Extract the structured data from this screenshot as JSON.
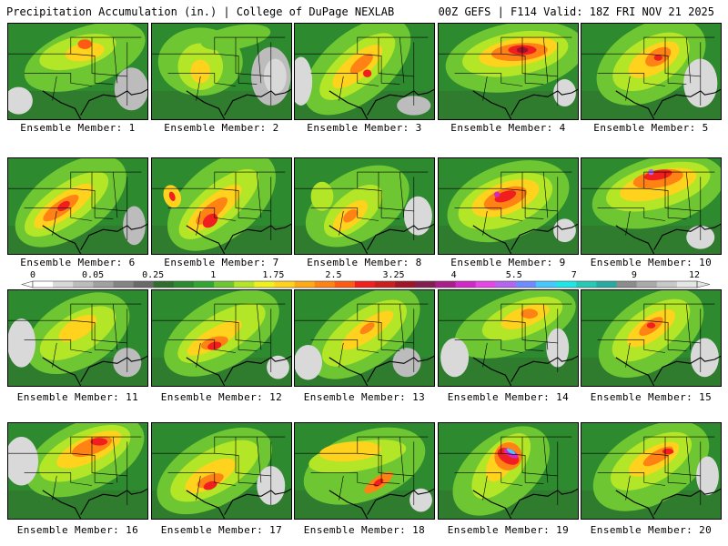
{
  "header": {
    "left": "Precipitation Accumulation (in.) | College of DuPage NEXLAB",
    "right": "00Z GEFS | F114 Valid: 18Z FRI NOV 21 2025"
  },
  "colorbar": {
    "labels": [
      "0",
      "0.05",
      "0.25",
      "1",
      "1.75",
      "2.5",
      "3.25",
      "4",
      "5.5",
      "7",
      "9",
      "12"
    ],
    "colors": [
      "#ffffff",
      "#d9d9d9",
      "#bcbcbc",
      "#a0a0a0",
      "#848484",
      "#6a6a6a",
      "#2f6e2f",
      "#2e8a2e",
      "#32a532",
      "#6ec632",
      "#b4e628",
      "#f0f01e",
      "#ffd21e",
      "#ffaa14",
      "#ff8214",
      "#ff5a14",
      "#f01e1e",
      "#c81e1e",
      "#a01428",
      "#821e50",
      "#aa1e8c",
      "#d228c8",
      "#e646e6",
      "#b464f0",
      "#6e8cff",
      "#46c8ff",
      "#1ee6e6",
      "#28c8b4",
      "#28aaa0",
      "#8c8c8c",
      "#aaaaaa",
      "#c8c8c8",
      "#e6e6e6"
    ]
  },
  "captions": [
    "Ensemble Member: 1",
    "Ensemble Member: 2",
    "Ensemble Member: 3",
    "Ensemble Member: 4",
    "Ensemble Member: 5",
    "Ensemble Member: 6",
    "Ensemble Member: 7",
    "Ensemble Member: 8",
    "Ensemble Member: 9",
    "Ensemble Member: 10",
    "Ensemble Member: 11",
    "Ensemble Member: 12",
    "Ensemble Member: 13",
    "Ensemble Member: 14",
    "Ensemble Member: 15",
    "Ensemble Member: 16",
    "Ensemble Member: 17",
    "Ensemble Member: 18",
    "Ensemble Member: 19",
    "Ensemble Member: 20"
  ],
  "members": [
    {
      "bg": "#2e8a2e",
      "blobs": [
        [
          "#6ec632",
          0.55,
          0.35,
          0.45,
          0.3,
          -20
        ],
        [
          "#b4e628",
          0.5,
          0.3,
          0.28,
          0.16,
          -15
        ],
        [
          "#ffd21e",
          0.55,
          0.3,
          0.14,
          0.09,
          -10
        ],
        [
          "#ff5a14",
          0.55,
          0.22,
          0.05,
          0.05,
          0
        ],
        [
          "#bcbcbc",
          0.88,
          0.68,
          0.12,
          0.22,
          0
        ],
        [
          "#d9d9d9",
          0.08,
          0.8,
          0.1,
          0.14,
          0
        ]
      ]
    },
    {
      "bg": "#2e8a2e",
      "blobs": [
        [
          "#6ec632",
          0.35,
          0.4,
          0.3,
          0.35,
          0
        ],
        [
          "#b4e628",
          0.35,
          0.45,
          0.16,
          0.24,
          0
        ],
        [
          "#ffd21e",
          0.35,
          0.5,
          0.07,
          0.12,
          0
        ],
        [
          "#bcbcbc",
          0.85,
          0.55,
          0.14,
          0.3,
          0
        ],
        [
          "#d9d9d9",
          0.88,
          0.55,
          0.08,
          0.18,
          0
        ],
        [
          "#6ec632",
          0.6,
          0.15,
          0.25,
          0.12,
          -10
        ]
      ]
    },
    {
      "bg": "#2e8a2e",
      "blobs": [
        [
          "#6ec632",
          0.45,
          0.45,
          0.45,
          0.35,
          -40
        ],
        [
          "#b4e628",
          0.45,
          0.45,
          0.33,
          0.2,
          -40
        ],
        [
          "#ffd21e",
          0.45,
          0.45,
          0.22,
          0.12,
          -40
        ],
        [
          "#ff8214",
          0.48,
          0.42,
          0.1,
          0.06,
          -40
        ],
        [
          "#f01e1e",
          0.52,
          0.52,
          0.03,
          0.04,
          0
        ],
        [
          "#d9d9d9",
          0.05,
          0.6,
          0.08,
          0.25,
          0
        ],
        [
          "#bcbcbc",
          0.85,
          0.85,
          0.12,
          0.1,
          0
        ]
      ]
    },
    {
      "bg": "#2e8a2e",
      "blobs": [
        [
          "#6ec632",
          0.55,
          0.35,
          0.5,
          0.35,
          -10
        ],
        [
          "#b4e628",
          0.55,
          0.32,
          0.38,
          0.22,
          -10
        ],
        [
          "#ffd21e",
          0.57,
          0.3,
          0.28,
          0.14,
          -10
        ],
        [
          "#ff8214",
          0.58,
          0.3,
          0.2,
          0.09,
          -5
        ],
        [
          "#f01e1e",
          0.6,
          0.28,
          0.1,
          0.05,
          0
        ],
        [
          "#a01428",
          0.6,
          0.28,
          0.04,
          0.03,
          0
        ],
        [
          "#d9d9d9",
          0.9,
          0.72,
          0.08,
          0.14,
          0
        ]
      ]
    },
    {
      "bg": "#2e8a2e",
      "blobs": [
        [
          "#6ec632",
          0.5,
          0.4,
          0.42,
          0.38,
          -30
        ],
        [
          "#b4e628",
          0.5,
          0.4,
          0.3,
          0.24,
          -30
        ],
        [
          "#ffd21e",
          0.52,
          0.38,
          0.2,
          0.14,
          -30
        ],
        [
          "#ff8214",
          0.55,
          0.35,
          0.1,
          0.08,
          -30
        ],
        [
          "#f01e1e",
          0.55,
          0.36,
          0.03,
          0.03,
          0
        ],
        [
          "#d9d9d9",
          0.85,
          0.62,
          0.12,
          0.25,
          0
        ]
      ]
    },
    {
      "bg": "#2e8a2e",
      "blobs": [
        [
          "#6ec632",
          0.45,
          0.45,
          0.45,
          0.35,
          -35
        ],
        [
          "#b4e628",
          0.42,
          0.48,
          0.35,
          0.2,
          -35
        ],
        [
          "#ffd21e",
          0.4,
          0.5,
          0.25,
          0.12,
          -35
        ],
        [
          "#ff8214",
          0.38,
          0.52,
          0.15,
          0.07,
          -35
        ],
        [
          "#f01e1e",
          0.4,
          0.5,
          0.05,
          0.04,
          -35
        ],
        [
          "#bcbcbc",
          0.9,
          0.7,
          0.08,
          0.2,
          0
        ]
      ]
    },
    {
      "bg": "#2e8a2e",
      "blobs": [
        [
          "#6ec632",
          0.5,
          0.45,
          0.45,
          0.38,
          -40
        ],
        [
          "#b4e628",
          0.48,
          0.48,
          0.35,
          0.2,
          -40
        ],
        [
          "#ffd21e",
          0.45,
          0.52,
          0.24,
          0.12,
          -40
        ],
        [
          "#ff8214",
          0.43,
          0.55,
          0.14,
          0.07,
          -40
        ],
        [
          "#f01e1e",
          0.42,
          0.65,
          0.06,
          0.06,
          -40
        ],
        [
          "#ffd21e",
          0.15,
          0.4,
          0.06,
          0.12,
          -20
        ],
        [
          "#f01e1e",
          0.15,
          0.4,
          0.02,
          0.05,
          -20
        ]
      ]
    },
    {
      "bg": "#2e8a2e",
      "blobs": [
        [
          "#6ec632",
          0.45,
          0.5,
          0.4,
          0.35,
          -30
        ],
        [
          "#b4e628",
          0.42,
          0.55,
          0.25,
          0.18,
          -40
        ],
        [
          "#ffd21e",
          0.4,
          0.6,
          0.15,
          0.1,
          -40
        ],
        [
          "#ff8214",
          0.4,
          0.6,
          0.06,
          0.05,
          -40
        ],
        [
          "#b4e628",
          0.2,
          0.4,
          0.08,
          0.15,
          0
        ],
        [
          "#d9d9d9",
          0.88,
          0.6,
          0.1,
          0.2,
          0
        ]
      ]
    },
    {
      "bg": "#2e8a2e",
      "blobs": [
        [
          "#6ec632",
          0.5,
          0.45,
          0.45,
          0.38,
          -20
        ],
        [
          "#b4e628",
          0.48,
          0.45,
          0.35,
          0.25,
          -20
        ],
        [
          "#ffd21e",
          0.48,
          0.42,
          0.25,
          0.16,
          -20
        ],
        [
          "#ff8214",
          0.48,
          0.42,
          0.16,
          0.1,
          -20
        ],
        [
          "#f01e1e",
          0.48,
          0.4,
          0.08,
          0.05,
          -20
        ],
        [
          "#d228c8",
          0.42,
          0.38,
          0.02,
          0.03,
          0
        ],
        [
          "#d9d9d9",
          0.9,
          0.75,
          0.08,
          0.12,
          0
        ]
      ]
    },
    {
      "bg": "#2e8a2e",
      "blobs": [
        [
          "#6ec632",
          0.55,
          0.35,
          0.48,
          0.35,
          -15
        ],
        [
          "#b4e628",
          0.55,
          0.3,
          0.38,
          0.22,
          -15
        ],
        [
          "#ffd21e",
          0.55,
          0.28,
          0.28,
          0.14,
          -15
        ],
        [
          "#ff8214",
          0.55,
          0.22,
          0.18,
          0.09,
          -10
        ],
        [
          "#f01e1e",
          0.55,
          0.18,
          0.1,
          0.05,
          -10
        ],
        [
          "#b464f0",
          0.5,
          0.15,
          0.02,
          0.03,
          0
        ],
        [
          "#d9d9d9",
          0.85,
          0.82,
          0.1,
          0.12,
          0
        ]
      ]
    },
    {
      "bg": "#2e8a2e",
      "blobs": [
        [
          "#6ec632",
          0.5,
          0.45,
          0.4,
          0.35,
          -30
        ],
        [
          "#b4e628",
          0.5,
          0.45,
          0.3,
          0.2,
          -30
        ],
        [
          "#ffd21e",
          0.5,
          0.4,
          0.15,
          0.1,
          -30
        ],
        [
          "#d9d9d9",
          0.1,
          0.55,
          0.1,
          0.25,
          0
        ],
        [
          "#bcbcbc",
          0.85,
          0.75,
          0.1,
          0.15,
          0
        ]
      ]
    },
    {
      "bg": "#2e8a2e",
      "blobs": [
        [
          "#6ec632",
          0.5,
          0.45,
          0.45,
          0.35,
          -30
        ],
        [
          "#b4e628",
          0.5,
          0.45,
          0.35,
          0.2,
          -30
        ],
        [
          "#ffd21e",
          0.45,
          0.5,
          0.22,
          0.1,
          -30
        ],
        [
          "#ff8214",
          0.45,
          0.55,
          0.1,
          0.06,
          -15
        ],
        [
          "#f01e1e",
          0.45,
          0.58,
          0.05,
          0.04,
          -15
        ],
        [
          "#d9d9d9",
          0.9,
          0.8,
          0.08,
          0.12,
          0
        ]
      ]
    },
    {
      "bg": "#2e8a2e",
      "blobs": [
        [
          "#6ec632",
          0.5,
          0.45,
          0.45,
          0.35,
          -35
        ],
        [
          "#b4e628",
          0.5,
          0.45,
          0.35,
          0.22,
          -35
        ],
        [
          "#ffd21e",
          0.52,
          0.42,
          0.22,
          0.1,
          -35
        ],
        [
          "#ff8214",
          0.52,
          0.4,
          0.06,
          0.04,
          -35
        ],
        [
          "#d9d9d9",
          0.1,
          0.75,
          0.1,
          0.18,
          0
        ],
        [
          "#bcbcbc",
          0.8,
          0.75,
          0.1,
          0.15,
          0
        ]
      ]
    },
    {
      "bg": "#2e8a2e",
      "blobs": [
        [
          "#6ec632",
          0.55,
          0.35,
          0.45,
          0.3,
          -20
        ],
        [
          "#b4e628",
          0.6,
          0.3,
          0.3,
          0.18,
          -20
        ],
        [
          "#ffd21e",
          0.62,
          0.28,
          0.18,
          0.1,
          -20
        ],
        [
          "#ff8214",
          0.65,
          0.25,
          0.06,
          0.05,
          0
        ],
        [
          "#d9d9d9",
          0.12,
          0.7,
          0.1,
          0.2,
          0
        ],
        [
          "#d9d9d9",
          0.85,
          0.6,
          0.08,
          0.2,
          0
        ]
      ]
    },
    {
      "bg": "#2e8a2e",
      "blobs": [
        [
          "#6ec632",
          0.5,
          0.45,
          0.42,
          0.36,
          -35
        ],
        [
          "#b4e628",
          0.5,
          0.42,
          0.32,
          0.22,
          -35
        ],
        [
          "#ffd21e",
          0.5,
          0.4,
          0.2,
          0.12,
          -35
        ],
        [
          "#ff8214",
          0.5,
          0.38,
          0.1,
          0.06,
          -35
        ],
        [
          "#f01e1e",
          0.5,
          0.37,
          0.03,
          0.03,
          0
        ],
        [
          "#d9d9d9",
          0.88,
          0.7,
          0.1,
          0.2,
          0
        ]
      ]
    },
    {
      "bg": "#2e8a2e",
      "blobs": [
        [
          "#6ec632",
          0.55,
          0.35,
          0.45,
          0.35,
          -25
        ],
        [
          "#b4e628",
          0.55,
          0.32,
          0.35,
          0.22,
          -25
        ],
        [
          "#ffd21e",
          0.58,
          0.28,
          0.25,
          0.13,
          -25
        ],
        [
          "#ff8214",
          0.6,
          0.25,
          0.15,
          0.08,
          -20
        ],
        [
          "#f01e1e",
          0.65,
          0.2,
          0.06,
          0.04,
          0
        ],
        [
          "#d9d9d9",
          0.1,
          0.4,
          0.12,
          0.25,
          0
        ]
      ]
    },
    {
      "bg": "#2e8a2e",
      "blobs": [
        [
          "#6ec632",
          0.45,
          0.5,
          0.45,
          0.35,
          -30
        ],
        [
          "#b4e628",
          0.45,
          0.5,
          0.35,
          0.22,
          -30
        ],
        [
          "#ffd21e",
          0.42,
          0.55,
          0.2,
          0.12,
          -30
        ],
        [
          "#ff8214",
          0.42,
          0.6,
          0.1,
          0.06,
          -20
        ],
        [
          "#f01e1e",
          0.42,
          0.65,
          0.05,
          0.04,
          -20
        ],
        [
          "#d9d9d9",
          0.85,
          0.65,
          0.1,
          0.2,
          0
        ]
      ]
    },
    {
      "bg": "#2e8a2e",
      "blobs": [
        [
          "#6ec632",
          0.5,
          0.45,
          0.45,
          0.35,
          -20
        ],
        [
          "#b4e628",
          0.45,
          0.35,
          0.35,
          0.15,
          -10
        ],
        [
          "#ffd21e",
          0.4,
          0.3,
          0.22,
          0.1,
          -5
        ],
        [
          "#ff8214",
          0.6,
          0.62,
          0.12,
          0.06,
          -35
        ],
        [
          "#f01e1e",
          0.6,
          0.62,
          0.04,
          0.03,
          -35
        ],
        [
          "#d9d9d9",
          0.9,
          0.8,
          0.08,
          0.12,
          0
        ]
      ]
    },
    {
      "bg": "#2e8a2e",
      "blobs": [
        [
          "#6ec632",
          0.45,
          0.5,
          0.4,
          0.35,
          -40
        ],
        [
          "#b4e628",
          0.45,
          0.45,
          0.28,
          0.2,
          -50
        ],
        [
          "#ffd21e",
          0.45,
          0.4,
          0.16,
          0.12,
          -60
        ],
        [
          "#ff8214",
          0.5,
          0.35,
          0.1,
          0.14,
          -60
        ],
        [
          "#f01e1e",
          0.5,
          0.35,
          0.05,
          0.12,
          -60
        ],
        [
          "#d228c8",
          0.52,
          0.32,
          0.025,
          0.08,
          -60
        ],
        [
          "#46c8ff",
          0.52,
          0.3,
          0.012,
          0.05,
          -60
        ]
      ]
    },
    {
      "bg": "#2e8a2e",
      "blobs": [
        [
          "#6ec632",
          0.5,
          0.45,
          0.45,
          0.38,
          -30
        ],
        [
          "#b4e628",
          0.5,
          0.4,
          0.32,
          0.22,
          -30
        ],
        [
          "#ffd21e",
          0.52,
          0.38,
          0.2,
          0.12,
          -30
        ],
        [
          "#ff8214",
          0.55,
          0.35,
          0.12,
          0.06,
          -30
        ],
        [
          "#f01e1e",
          0.62,
          0.3,
          0.04,
          0.03,
          0
        ],
        [
          "#d9d9d9",
          0.9,
          0.55,
          0.08,
          0.2,
          0
        ]
      ]
    }
  ]
}
